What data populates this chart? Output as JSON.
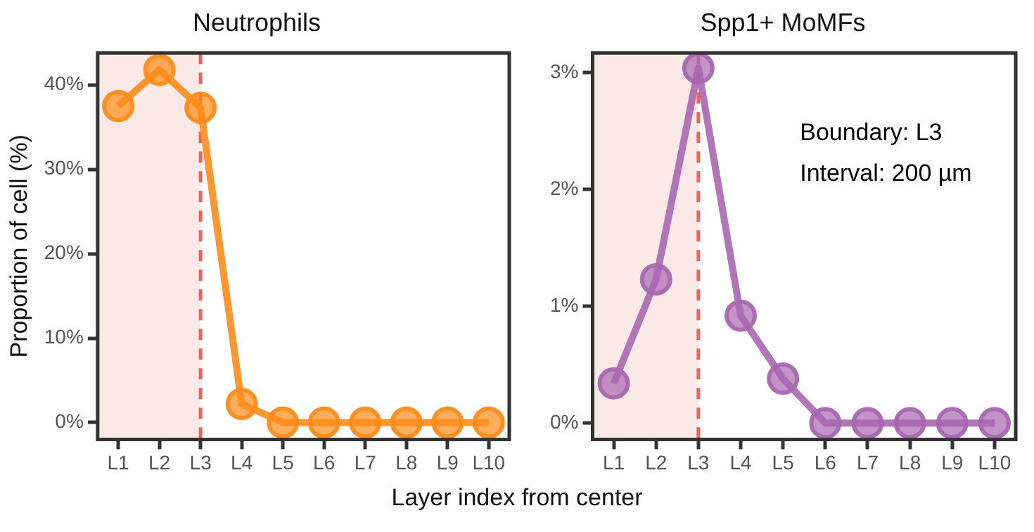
{
  "chart_data": [
    {
      "type": "line",
      "title": "Neutrophils",
      "ylabel": "Proportion of cell (%)",
      "xlabel": "Layer index from center",
      "categories": [
        "L1",
        "L2",
        "L3",
        "L4",
        "L5",
        "L6",
        "L7",
        "L8",
        "L9",
        "L10"
      ],
      "series": [
        {
          "color": "#ff8c1a",
          "values": [
            37.5,
            41.8,
            37.3,
            2.2,
            0,
            0,
            0,
            0,
            0,
            0
          ]
        }
      ],
      "ylim": [
        -2,
        43.8
      ],
      "yticks": [
        {
          "value": 0,
          "label": "0%"
        },
        {
          "value": 10,
          "label": "10%"
        },
        {
          "value": 20,
          "label": "20%"
        },
        {
          "value": 30,
          "label": "30%"
        },
        {
          "value": 40,
          "label": "40%"
        }
      ],
      "bands": [
        {
          "axis": "x",
          "from": "L1",
          "to": "L3",
          "color": "#fbe9e7"
        }
      ],
      "ref_lines": [
        {
          "axis": "x",
          "value": "L3",
          "color": "#e8675c",
          "line_style": "dashed"
        }
      ],
      "marker": "circle",
      "line_style": "solid",
      "grid": false,
      "legend": false
    },
    {
      "type": "line",
      "title": "Spp1+ MoMFs",
      "categories": [
        "L1",
        "L2",
        "L3",
        "L4",
        "L5",
        "L6",
        "L7",
        "L8",
        "L9",
        "L10"
      ],
      "series": [
        {
          "color": "#a867b0",
          "values": [
            0.34,
            1.23,
            3.04,
            0.92,
            0.38,
            0,
            0,
            0,
            0,
            0
          ]
        }
      ],
      "ylim": [
        -0.14,
        3.17
      ],
      "yticks": [
        {
          "value": 0,
          "label": "0%"
        },
        {
          "value": 1,
          "label": "1%"
        },
        {
          "value": 2,
          "label": "2%"
        },
        {
          "value": 3,
          "label": "3%"
        }
      ],
      "bands": [
        {
          "axis": "x",
          "from": "L1",
          "to": "L3",
          "color": "#fbe9e7"
        }
      ],
      "ref_lines": [
        {
          "axis": "x",
          "value": "L3",
          "color": "#e8675c",
          "line_style": "dashed"
        }
      ],
      "annotations": [
        "Boundary: L3",
        "Interval: 200 µm"
      ],
      "marker": "circle",
      "line_style": "solid",
      "grid": false,
      "legend": false
    }
  ]
}
